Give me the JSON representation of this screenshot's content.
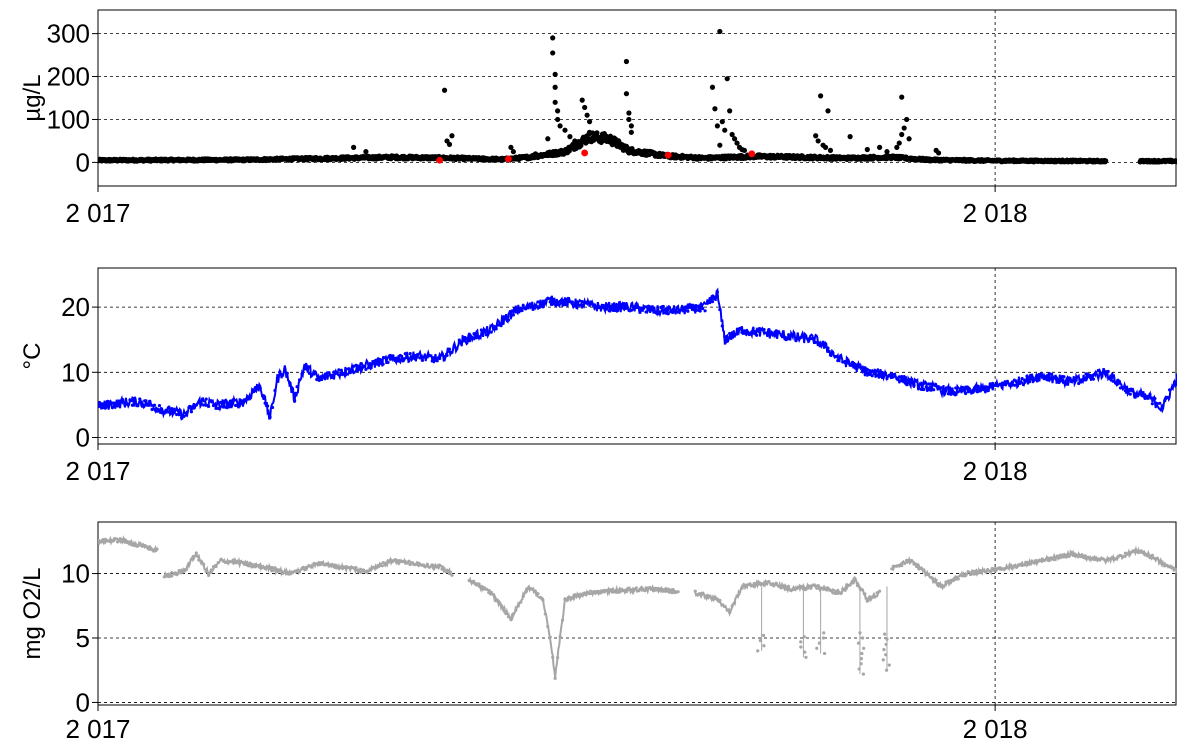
{
  "chart_data": [
    {
      "type": "scatter",
      "ylabel": "µg/L",
      "yticks": [
        0,
        100,
        200,
        300
      ],
      "ylim": [
        -55,
        355
      ],
      "xlim": [
        "2017-01-01",
        "2018-03-16"
      ],
      "xticks": [
        {
          "date": "2017-01-01",
          "label": "2 017"
        },
        {
          "date": "2018-01-01",
          "label": "2 018"
        }
      ],
      "grid": true,
      "series": [
        {
          "color": "#000000",
          "baseline": [
            [
              "2017-01-01",
              5
            ],
            [
              "2017-03-01",
              6
            ],
            [
              "2017-04-01",
              9
            ],
            [
              "2017-05-01",
              12
            ],
            [
              "2017-05-25",
              10
            ],
            [
              "2017-06-15",
              7
            ],
            [
              "2017-06-25",
              12
            ],
            [
              "2017-07-10",
              25
            ],
            [
              "2017-07-20",
              60
            ],
            [
              "2017-07-28",
              55
            ],
            [
              "2017-08-05",
              28
            ],
            [
              "2017-08-20",
              15
            ],
            [
              "2017-09-05",
              10
            ],
            [
              "2017-09-25",
              14
            ],
            [
              "2017-10-15",
              12
            ],
            [
              "2017-11-01",
              10
            ],
            [
              "2017-11-20",
              12
            ],
            [
              "2017-12-05",
              6
            ],
            [
              "2018-01-01",
              4
            ],
            [
              "2018-02-15",
              3
            ]
          ],
          "gaps": [
            [
              "2018-02-15",
              "2018-03-01"
            ]
          ],
          "outliers": [
            [
              "2017-05-22",
              168
            ],
            [
              "2017-05-23",
              50
            ],
            [
              "2017-05-25",
              62
            ],
            [
              "2017-05-24",
              42
            ],
            [
              "2017-06-18",
              35
            ],
            [
              "2017-06-19",
              25
            ],
            [
              "2017-06-28",
              20
            ],
            [
              "2017-07-05",
              290
            ],
            [
              "2017-07-05",
              255
            ],
            [
              "2017-07-06",
              205
            ],
            [
              "2017-07-06",
              175
            ],
            [
              "2017-07-06",
              140
            ],
            [
              "2017-07-07",
              120
            ],
            [
              "2017-07-07",
              100
            ],
            [
              "2017-07-08",
              85
            ],
            [
              "2017-07-10",
              75
            ],
            [
              "2017-07-12",
              60
            ],
            [
              "2017-07-14",
              50
            ],
            [
              "2017-07-03",
              55
            ],
            [
              "2017-07-17",
              145
            ],
            [
              "2017-07-18",
              128
            ],
            [
              "2017-07-19",
              110
            ],
            [
              "2017-07-20",
              95
            ],
            [
              "2017-08-04",
              235
            ],
            [
              "2017-08-04",
              160
            ],
            [
              "2017-08-05",
              115
            ],
            [
              "2017-08-05",
              100
            ],
            [
              "2017-08-06",
              85
            ],
            [
              "2017-08-06",
              70
            ],
            [
              "2017-09-11",
              305
            ],
            [
              "2017-09-08",
              175
            ],
            [
              "2017-09-09",
              125
            ],
            [
              "2017-09-14",
              195
            ],
            [
              "2017-09-15",
              120
            ],
            [
              "2017-09-12",
              95
            ],
            [
              "2017-09-10",
              85
            ],
            [
              "2017-09-13",
              75
            ],
            [
              "2017-09-16",
              65
            ],
            [
              "2017-09-17",
              55
            ],
            [
              "2017-09-18",
              45
            ],
            [
              "2017-09-11",
              40
            ],
            [
              "2017-09-19",
              35
            ],
            [
              "2017-09-20",
              30
            ],
            [
              "2017-09-21",
              28
            ],
            [
              "2017-10-22",
              155
            ],
            [
              "2017-10-25",
              120
            ],
            [
              "2017-10-20",
              62
            ],
            [
              "2017-10-21",
              50
            ],
            [
              "2017-10-23",
              40
            ],
            [
              "2017-10-24",
              35
            ],
            [
              "2017-10-26",
              28
            ],
            [
              "2017-11-03",
              60
            ],
            [
              "2017-11-10",
              30
            ],
            [
              "2017-11-15",
              35
            ],
            [
              "2017-11-18",
              25
            ],
            [
              "2017-11-24",
              152
            ],
            [
              "2017-11-26",
              100
            ],
            [
              "2017-11-25",
              80
            ],
            [
              "2017-11-24",
              65
            ],
            [
              "2017-11-27",
              55
            ],
            [
              "2017-11-23",
              45
            ],
            [
              "2017-11-22",
              35
            ],
            [
              "2017-12-08",
              28
            ],
            [
              "2017-12-09",
              22
            ],
            [
              "2017-04-15",
              35
            ],
            [
              "2017-04-20",
              25
            ]
          ]
        },
        {
          "color": "#ff0000",
          "points": [
            [
              "2017-05-20",
              5
            ],
            [
              "2017-06-17",
              8
            ],
            [
              "2017-07-18",
              22
            ],
            [
              "2017-08-21",
              17
            ],
            [
              "2017-09-24",
              20
            ]
          ]
        }
      ]
    },
    {
      "type": "line",
      "ylabel": "°C",
      "yticks": [
        0,
        10,
        20
      ],
      "ylim": [
        -1,
        26
      ],
      "xlim": [
        "2017-01-01",
        "2018-03-16"
      ],
      "xticks": [
        {
          "date": "2017-01-01",
          "label": "2 017"
        },
        {
          "date": "2018-01-01",
          "label": "2 018"
        }
      ],
      "grid": true,
      "series": [
        {
          "color": "#0000ff",
          "x": [
            "2017-01-01",
            "2017-01-15",
            "2017-01-20",
            "2017-01-28",
            "2017-02-05",
            "2017-02-12",
            "2017-02-18",
            "2017-02-25",
            "2017-03-01",
            "2017-03-08",
            "2017-03-12",
            "2017-03-15",
            "2017-03-18",
            "2017-03-22",
            "2017-03-26",
            "2017-04-01",
            "2017-04-10",
            "2017-04-20",
            "2017-04-30",
            "2017-05-10",
            "2017-05-20",
            "2017-05-30",
            "2017-06-10",
            "2017-06-20",
            "2017-06-30",
            "2017-07-05",
            "2017-07-15",
            "2017-07-25",
            "2017-08-05",
            "2017-08-15",
            "2017-08-25",
            "2017-09-05",
            "2017-09-10",
            "2017-09-13",
            "2017-09-20",
            "2017-09-30",
            "2017-10-10",
            "2017-10-20",
            "2017-10-30",
            "2017-11-10",
            "2017-11-20",
            "2017-12-01",
            "2017-12-15",
            "2017-12-28",
            "2018-01-10",
            "2018-01-20",
            "2018-02-01",
            "2018-02-15",
            "2018-02-25",
            "2018-03-05",
            "2018-03-10",
            "2018-03-16"
          ],
          "y": [
            4.8,
            5.5,
            5.3,
            4.2,
            3.5,
            5.6,
            5.0,
            5.2,
            5.5,
            8.0,
            3.0,
            9.0,
            10.5,
            6.0,
            11.0,
            9.0,
            10.0,
            11.0,
            12.0,
            12.5,
            12.0,
            15.0,
            16.5,
            19.5,
            20.5,
            21.0,
            20.5,
            20.0,
            20.0,
            19.5,
            19.5,
            20.0,
            22.0,
            15.0,
            16.5,
            16.0,
            15.5,
            15.0,
            12.0,
            10.0,
            9.5,
            8.0,
            7.0,
            7.5,
            8.5,
            9.5,
            8.5,
            10.0,
            7.0,
            6.0,
            4.5,
            9.0
          ]
        }
      ]
    },
    {
      "type": "line",
      "ylabel": "mg O2/L",
      "yticks": [
        0,
        5,
        10
      ],
      "ylim": [
        -0.2,
        14
      ],
      "xlim": [
        "2017-01-01",
        "2018-03-16"
      ],
      "xticks": [
        {
          "date": "2017-01-01",
          "label": "2 017"
        },
        {
          "date": "2018-01-01",
          "label": "2 018"
        }
      ],
      "grid": true,
      "series": [
        {
          "color": "#a6a6a6",
          "segments": [
            {
              "x": [
                "2017-01-01",
                "2017-01-10",
                "2017-01-18",
                "2017-01-25"
              ],
              "y": [
                12.5,
                12.6,
                12.2,
                11.8
              ]
            },
            {
              "x": [
                "2017-01-28",
                "2017-02-05",
                "2017-02-10",
                "2017-02-15",
                "2017-02-20",
                "2017-03-01",
                "2017-03-10",
                "2017-03-20",
                "2017-04-01",
                "2017-04-10",
                "2017-04-20",
                "2017-05-01",
                "2017-05-10",
                "2017-05-20",
                "2017-05-25"
              ],
              "y": [
                9.8,
                10.2,
                11.5,
                10.0,
                11.0,
                10.8,
                10.5,
                10.0,
                10.8,
                10.5,
                10.2,
                11.0,
                10.8,
                10.5,
                10.0
              ]
            },
            {
              "x": [
                "2017-06-01",
                "2017-06-10",
                "2017-06-18",
                "2017-06-25",
                "2017-07-01",
                "2017-07-04",
                "2017-07-06",
                "2017-07-10",
                "2017-07-20",
                "2017-08-01",
                "2017-08-15",
                "2017-08-25"
              ],
              "y": [
                9.5,
                8.5,
                6.5,
                9.0,
                8.0,
                5.0,
                2.0,
                8.0,
                8.5,
                8.7,
                8.8,
                8.6
              ]
            },
            {
              "x": [
                "2017-09-01",
                "2017-09-10",
                "2017-09-15",
                "2017-09-20",
                "2017-10-01",
                "2017-10-10",
                "2017-10-20",
                "2017-10-30",
                "2017-11-05",
                "2017-11-10",
                "2017-11-15"
              ],
              "y": [
                8.5,
                8.0,
                7.0,
                9.0,
                9.3,
                8.8,
                9.0,
                8.5,
                9.5,
                8.0,
                8.5
              ]
            },
            {
              "x": [
                "2017-11-20",
                "2017-11-28",
                "2017-12-10",
                "2017-12-20",
                "2018-01-01",
                "2018-01-15",
                "2018-02-01",
                "2018-02-15",
                "2018-03-01",
                "2018-03-16"
              ],
              "y": [
                10.5,
                11.0,
                9.0,
                10.0,
                10.3,
                10.8,
                11.5,
                11.0,
                11.8,
                10.2
              ]
            }
          ],
          "dips": [
            [
              "2017-09-28",
              4.0
            ],
            [
              "2017-10-15",
              3.5
            ],
            [
              "2017-10-22",
              3.8
            ],
            [
              "2017-11-07",
              2.2
            ],
            [
              "2017-11-18",
              2.5
            ]
          ]
        }
      ]
    }
  ]
}
